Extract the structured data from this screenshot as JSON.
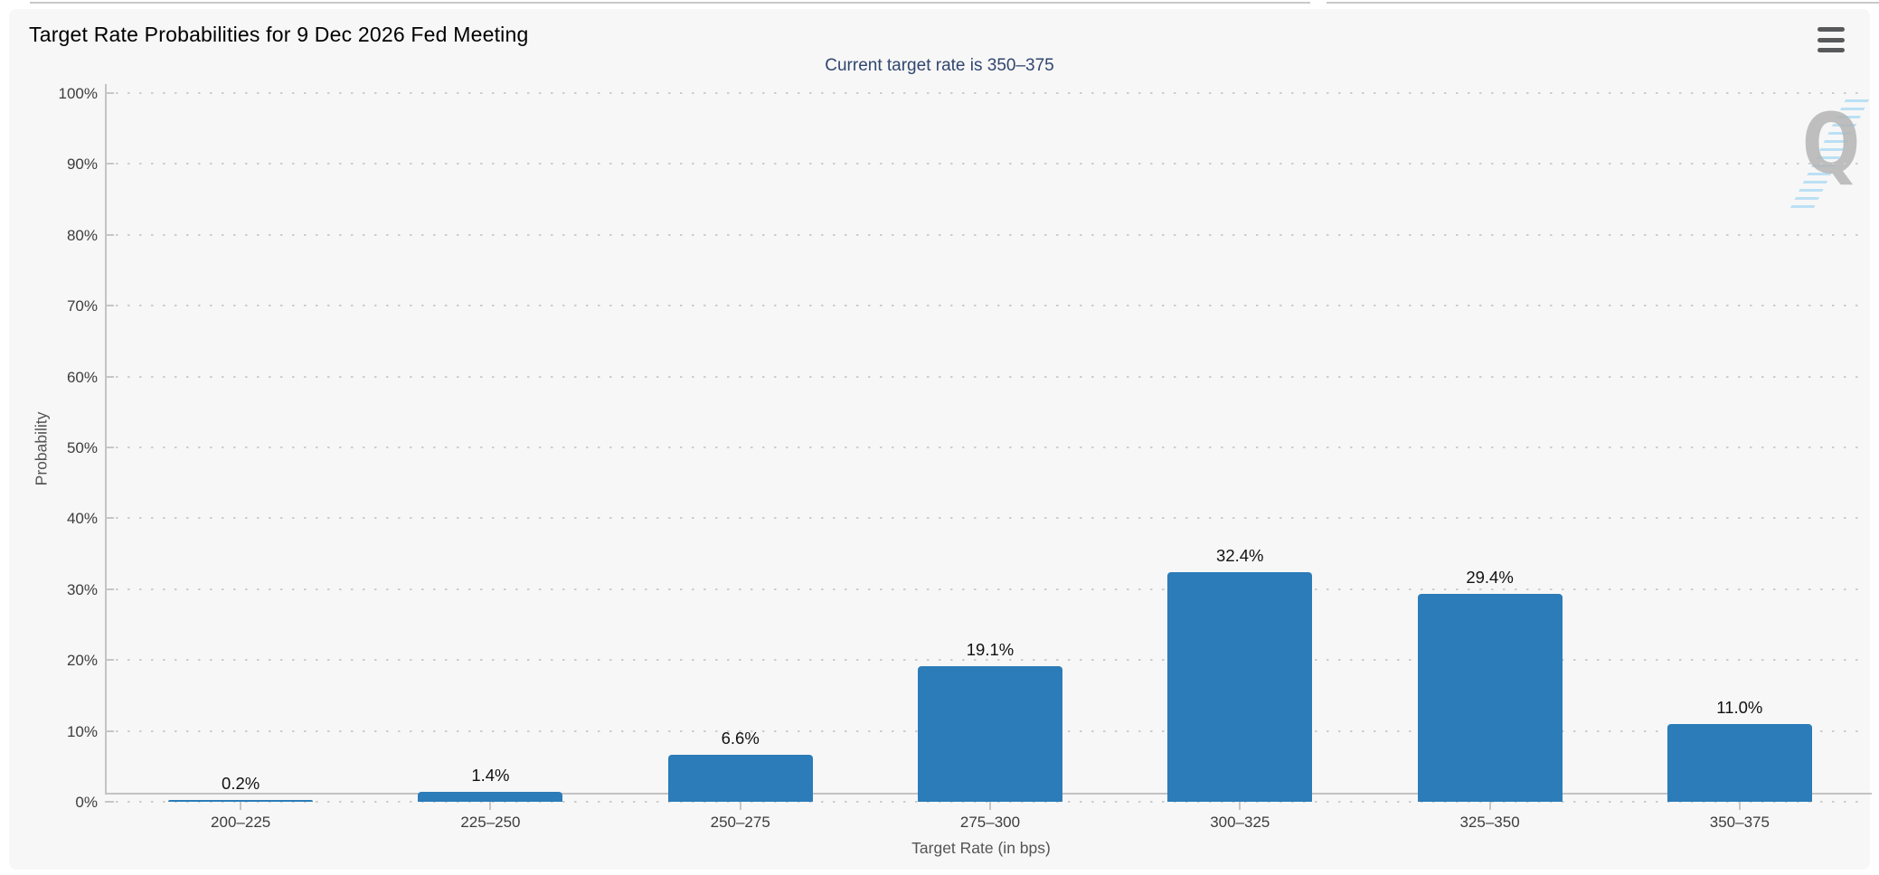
{
  "header": {
    "menu_icon": "hamburger-menu"
  },
  "watermark": {
    "letter": "Q"
  },
  "chart_data": {
    "type": "bar",
    "title": "Target Rate Probabilities for 9 Dec 2026 Fed Meeting",
    "subtitle": "Current target rate is 350–375",
    "categories": [
      "200–225",
      "225–250",
      "250–275",
      "275–300",
      "300–325",
      "325–350",
      "350–375"
    ],
    "values": [
      0.2,
      1.4,
      6.6,
      19.1,
      32.4,
      29.4,
      11.0
    ],
    "value_labels": [
      "0.2%",
      "1.4%",
      "6.6%",
      "19.1%",
      "32.4%",
      "29.4%",
      "11.0%"
    ],
    "xlabel": "Target Rate (in bps)",
    "ylabel": "Probability",
    "ylim": [
      0,
      100
    ],
    "ytick_step": 10,
    "ytick_labels": [
      "0%",
      "10%",
      "20%",
      "30%",
      "40%",
      "50%",
      "60%",
      "70%",
      "80%",
      "90%",
      "100%"
    ],
    "grid": "horizontal-dotted",
    "legend_position": "none",
    "bar_color": "#2b7cb9"
  },
  "colors": {
    "page_bg": "#ffffff",
    "panel_bg": "#f7f7f7",
    "title_text": "#000000",
    "subtitle_text": "#31466f",
    "bar": "#2b7cb9",
    "grid_dot": "#cdcdcd",
    "axis_line": "#c3c3c3",
    "tick_text": "#3d3d3d",
    "axis_title_text": "#555555",
    "value_label_text": "#111111",
    "menu_icon": "#58595b",
    "watermark_letter": "#b5b5b5",
    "watermark_hatch": "#b4def4",
    "top_hairline": "#c9c9cb"
  }
}
